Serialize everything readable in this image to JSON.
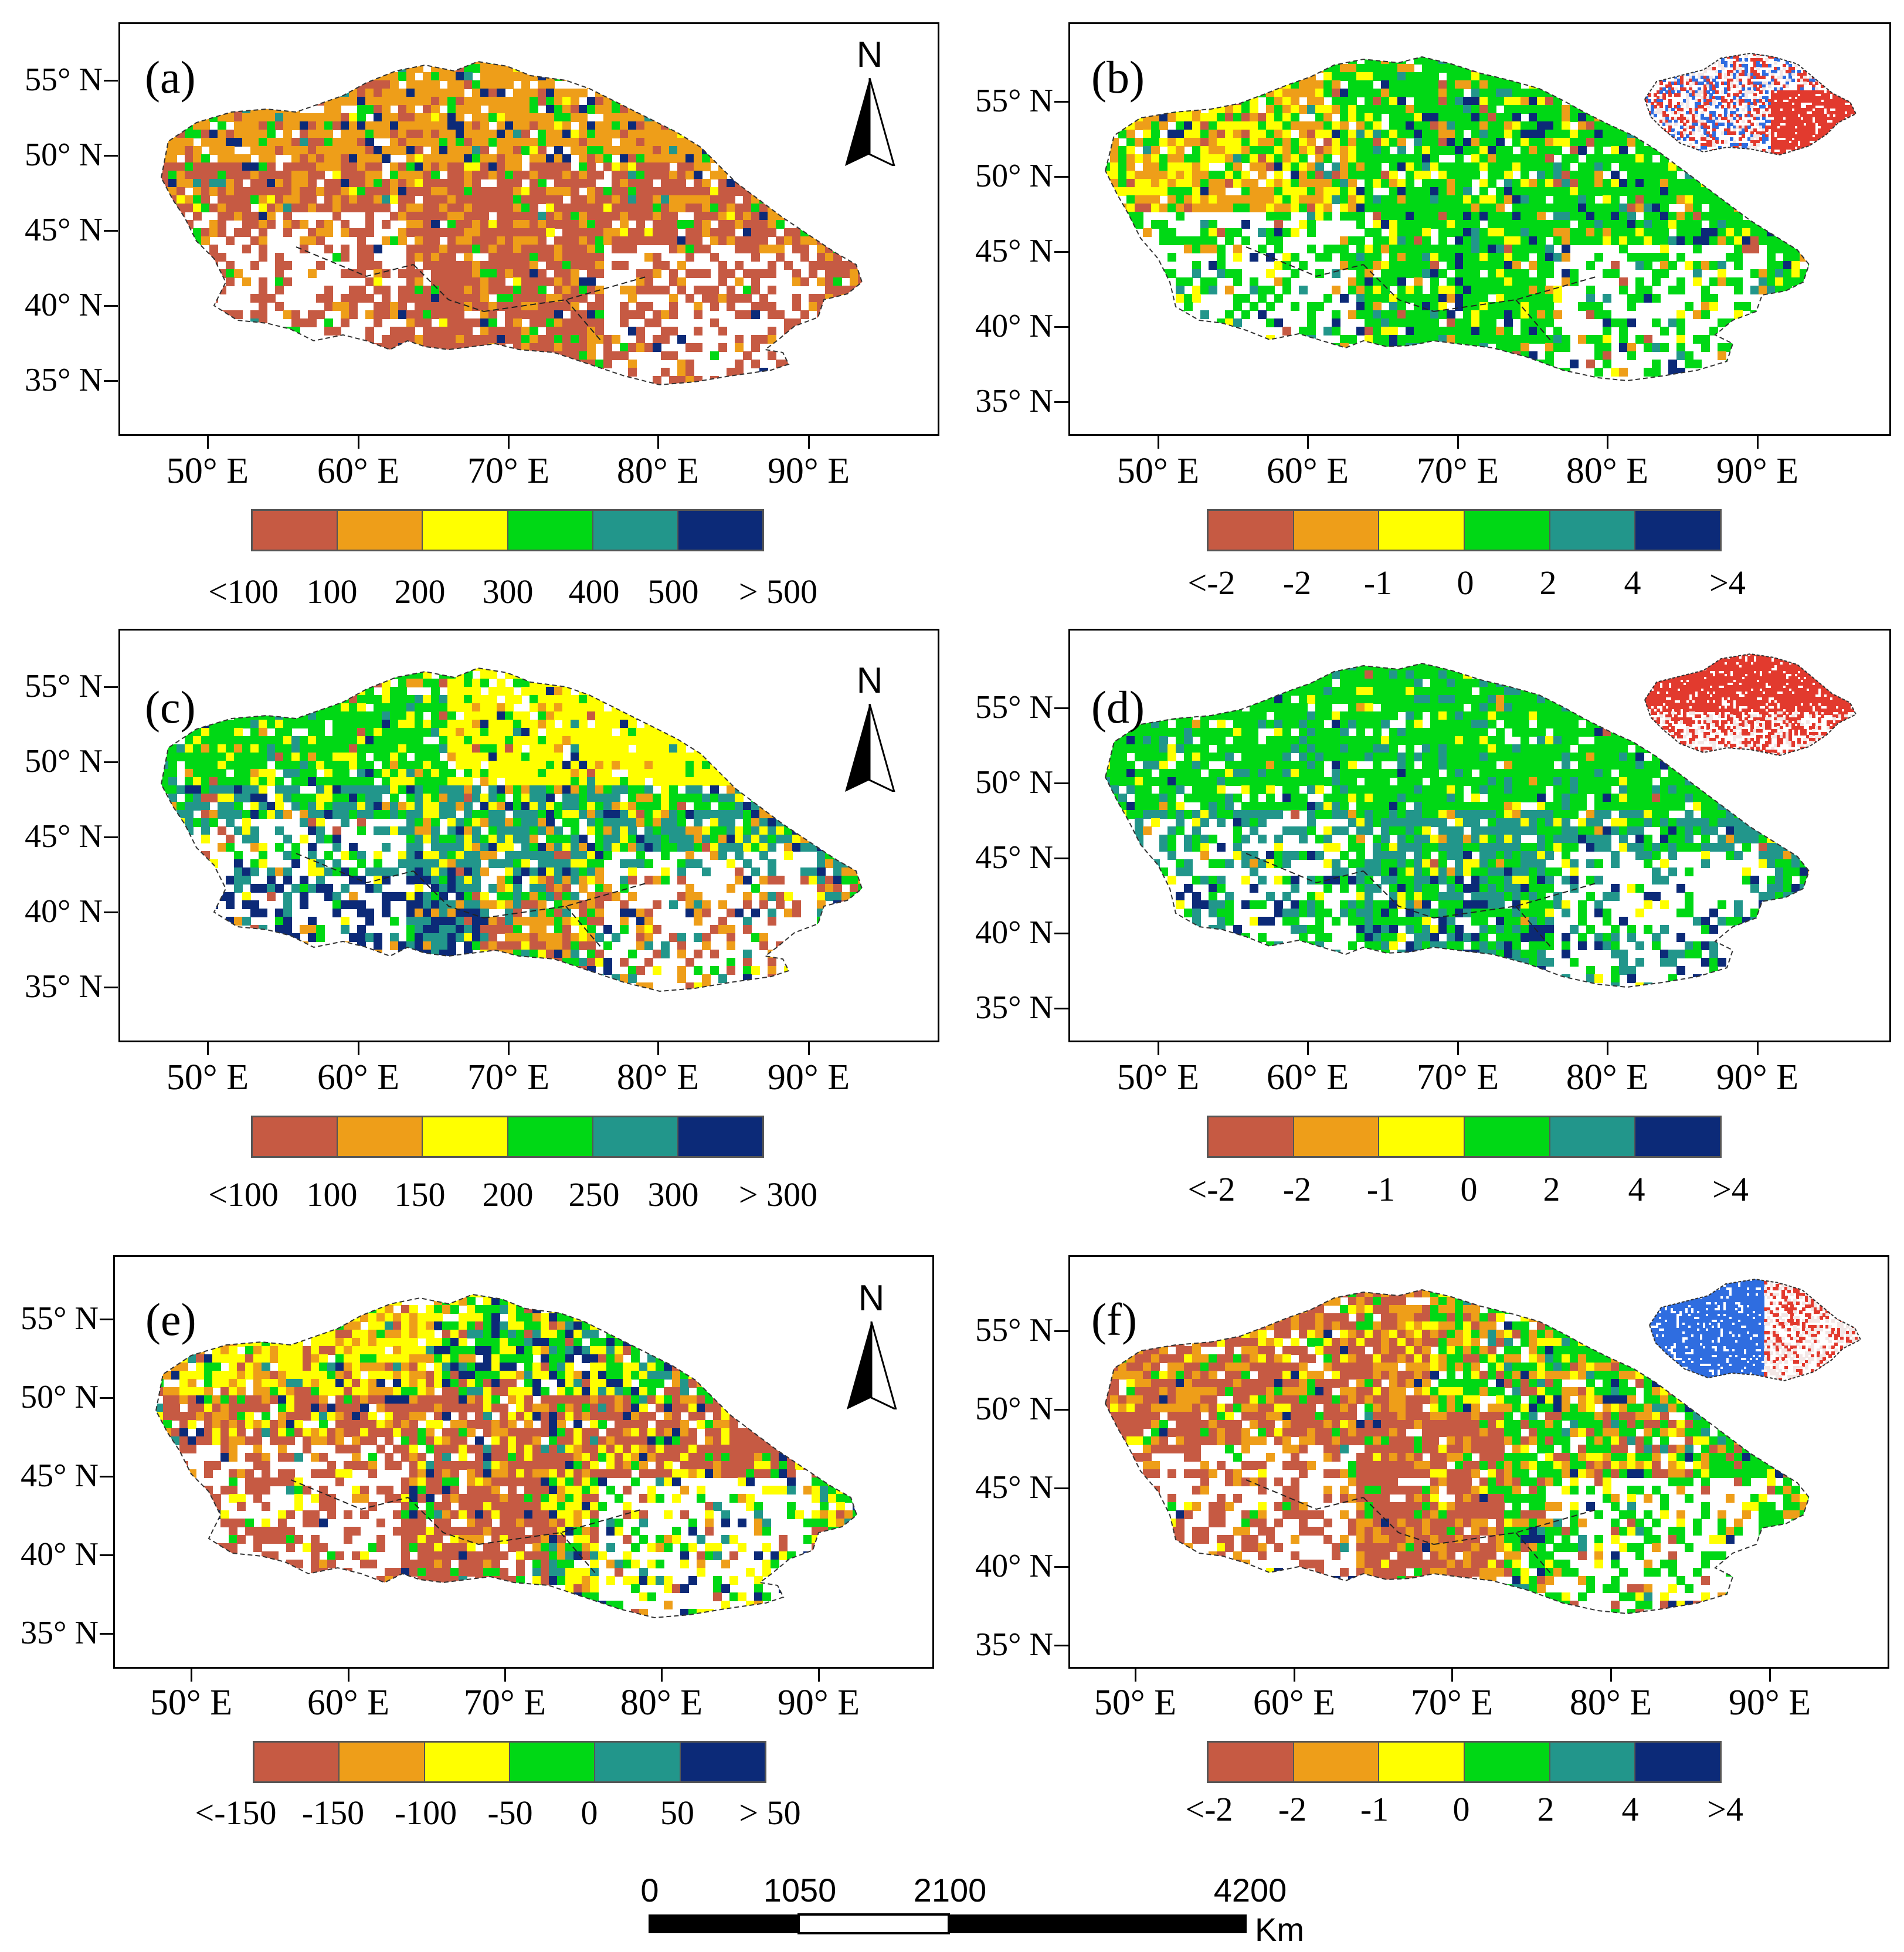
{
  "figure": {
    "colors": [
      "#c65a43",
      "#ee9e19",
      "#ffff00",
      "#00d815",
      "#22968b",
      "#0c2a78"
    ],
    "inset_colors": {
      "red": "#e23a2e",
      "blue": "#2f6de0",
      "pale": "#f3e7e6"
    }
  },
  "panels": [
    {
      "id": "a",
      "label": "(a)",
      "lat_labels": [
        "55° N",
        "50° N",
        "45° N",
        "40° N",
        "35° N"
      ],
      "lon_labels": [
        "50° E",
        "60° E",
        "70° E",
        "80° E",
        "90° E"
      ],
      "legend": {
        "labels": [
          "<100",
          "100",
          "200",
          "300",
          "400",
          "500",
          "> 500"
        ]
      },
      "north_arrow": {
        "letter": "N",
        "icon": "north-arrow-icon"
      },
      "inset": null,
      "palette_weights": [
        0.4,
        0.42,
        0.04,
        0.08,
        0.02,
        0.04
      ]
    },
    {
      "id": "b",
      "label": "(b)",
      "lat_labels": [
        "55° N",
        "50° N",
        "45° N",
        "40° N",
        "35° N"
      ],
      "lon_labels": [
        "50° E",
        "60° E",
        "70° E",
        "80° E",
        "90° E"
      ],
      "legend": {
        "labels": [
          "<-2",
          "-2",
          "-1",
          "0",
          "2",
          "4",
          ">4"
        ]
      },
      "north_arrow": null,
      "inset": {
        "type": "significance-map",
        "dominant": "mixed-red-blue"
      },
      "palette_weights": [
        0.04,
        0.12,
        0.14,
        0.6,
        0.05,
        0.05
      ]
    },
    {
      "id": "c",
      "label": "(c)",
      "lat_labels": [
        "55° N",
        "50° N",
        "45° N",
        "40° N",
        "35° N"
      ],
      "lon_labels": [
        "50° E",
        "60° E",
        "70° E",
        "80° E",
        "90° E"
      ],
      "legend": {
        "labels": [
          "<100",
          "100",
          "150",
          "200",
          "250",
          "300",
          "> 300"
        ]
      },
      "north_arrow": {
        "letter": "N",
        "icon": "north-arrow-icon"
      },
      "inset": null,
      "palette_weights": [
        0.06,
        0.14,
        0.3,
        0.25,
        0.17,
        0.08
      ]
    },
    {
      "id": "d",
      "label": "(d)",
      "lat_labels": [
        "55° N",
        "50° N",
        "45° N",
        "40° N",
        "35° N"
      ],
      "lon_labels": [
        "50° E",
        "60° E",
        "70° E",
        "80° E",
        "90° E"
      ],
      "legend": {
        "labels": [
          "<-2",
          "-2",
          "-1",
          "0",
          "2",
          "4",
          ">4"
        ]
      },
      "north_arrow": null,
      "inset": {
        "type": "significance-map",
        "dominant": "red"
      },
      "palette_weights": [
        0.01,
        0.02,
        0.06,
        0.55,
        0.28,
        0.08
      ]
    },
    {
      "id": "e",
      "label": "(e)",
      "lat_labels": [
        "55° N",
        "50° N",
        "45° N",
        "40° N",
        "35° N"
      ],
      "lon_labels": [
        "50° E",
        "60° E",
        "70° E",
        "80° E",
        "90° E"
      ],
      "legend": {
        "labels": [
          "<-150",
          "-150",
          "-100",
          "-50",
          "0",
          "50",
          "> 50"
        ]
      },
      "north_arrow": {
        "letter": "N",
        "icon": "north-arrow-icon"
      },
      "inset": null,
      "palette_weights": [
        0.36,
        0.14,
        0.22,
        0.14,
        0.06,
        0.08
      ]
    },
    {
      "id": "f",
      "label": "(f)",
      "lat_labels": [
        "55° N",
        "50° N",
        "45° N",
        "40° N",
        "35° N"
      ],
      "lon_labels": [
        "50° E",
        "60° E",
        "70° E",
        "80° E",
        "90° E"
      ],
      "legend": {
        "labels": [
          "<-2",
          "-2",
          "-1",
          "0",
          "2",
          "4",
          ">4"
        ]
      },
      "north_arrow": null,
      "inset": {
        "type": "significance-map",
        "dominant": "blue"
      },
      "palette_weights": [
        0.34,
        0.24,
        0.1,
        0.24,
        0.04,
        0.04
      ]
    }
  ],
  "scale_bar": {
    "labels": [
      "0",
      "1050",
      "2100",
      "4200"
    ],
    "unit": "Km",
    "values_km": [
      0,
      1050,
      2100,
      4200
    ]
  }
}
